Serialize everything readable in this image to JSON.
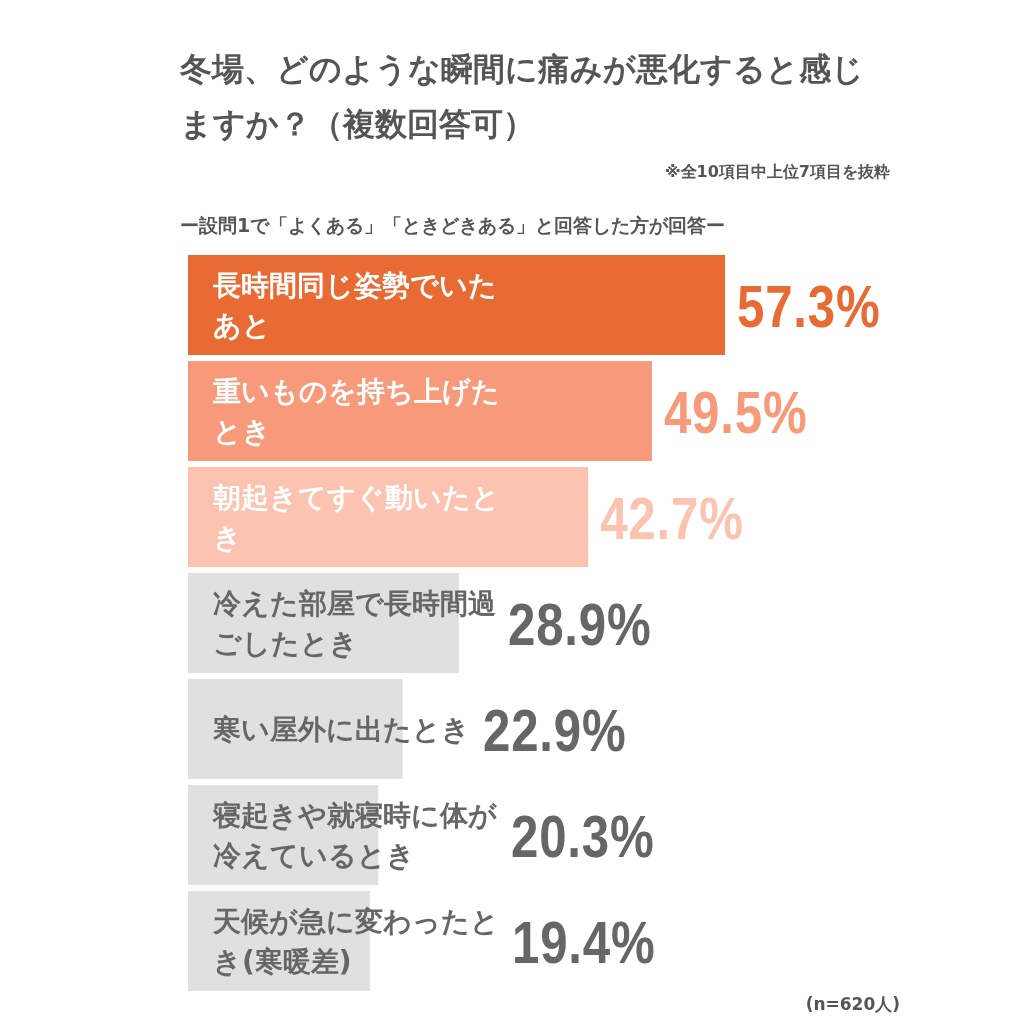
{
  "chart_data": {
    "type": "bar",
    "orientation": "horizontal",
    "title": "冬場、どのような瞬間に痛みが悪化すると感じますか？（複数回答可）",
    "subtitle": "ー設問1で「よくある」「ときどきある」と回答した方が回答ー",
    "annotations": [
      "※全10項目中上位7項目を抜粋",
      "(n=620人)"
    ],
    "categories": [
      "長時間同じ姿勢でいたあと",
      "重いものを持ち上げたとき",
      "朝起きてすぐ動いたとき",
      "冷えた部屋で長時間過ごしたとき",
      "寒い屋外に出たとき",
      "寝起きや就寝時に体が冷えているとき",
      "天候が急に変わったとき(寒暖差)"
    ],
    "values": [
      57.3,
      49.5,
      42.7,
      28.9,
      22.9,
      20.3,
      19.4
    ],
    "value_labels": [
      "57.3%",
      "49.5%",
      "42.7%",
      "28.9%",
      "22.9%",
      "20.3%",
      "19.4%"
    ],
    "colors": [
      "#e96b34",
      "#f79a7a",
      "#fcc3b0",
      "#e0e0e0",
      "#e0e0e0",
      "#e0e0e0",
      "#e0e0e0"
    ],
    "data_labels": true
  }
}
